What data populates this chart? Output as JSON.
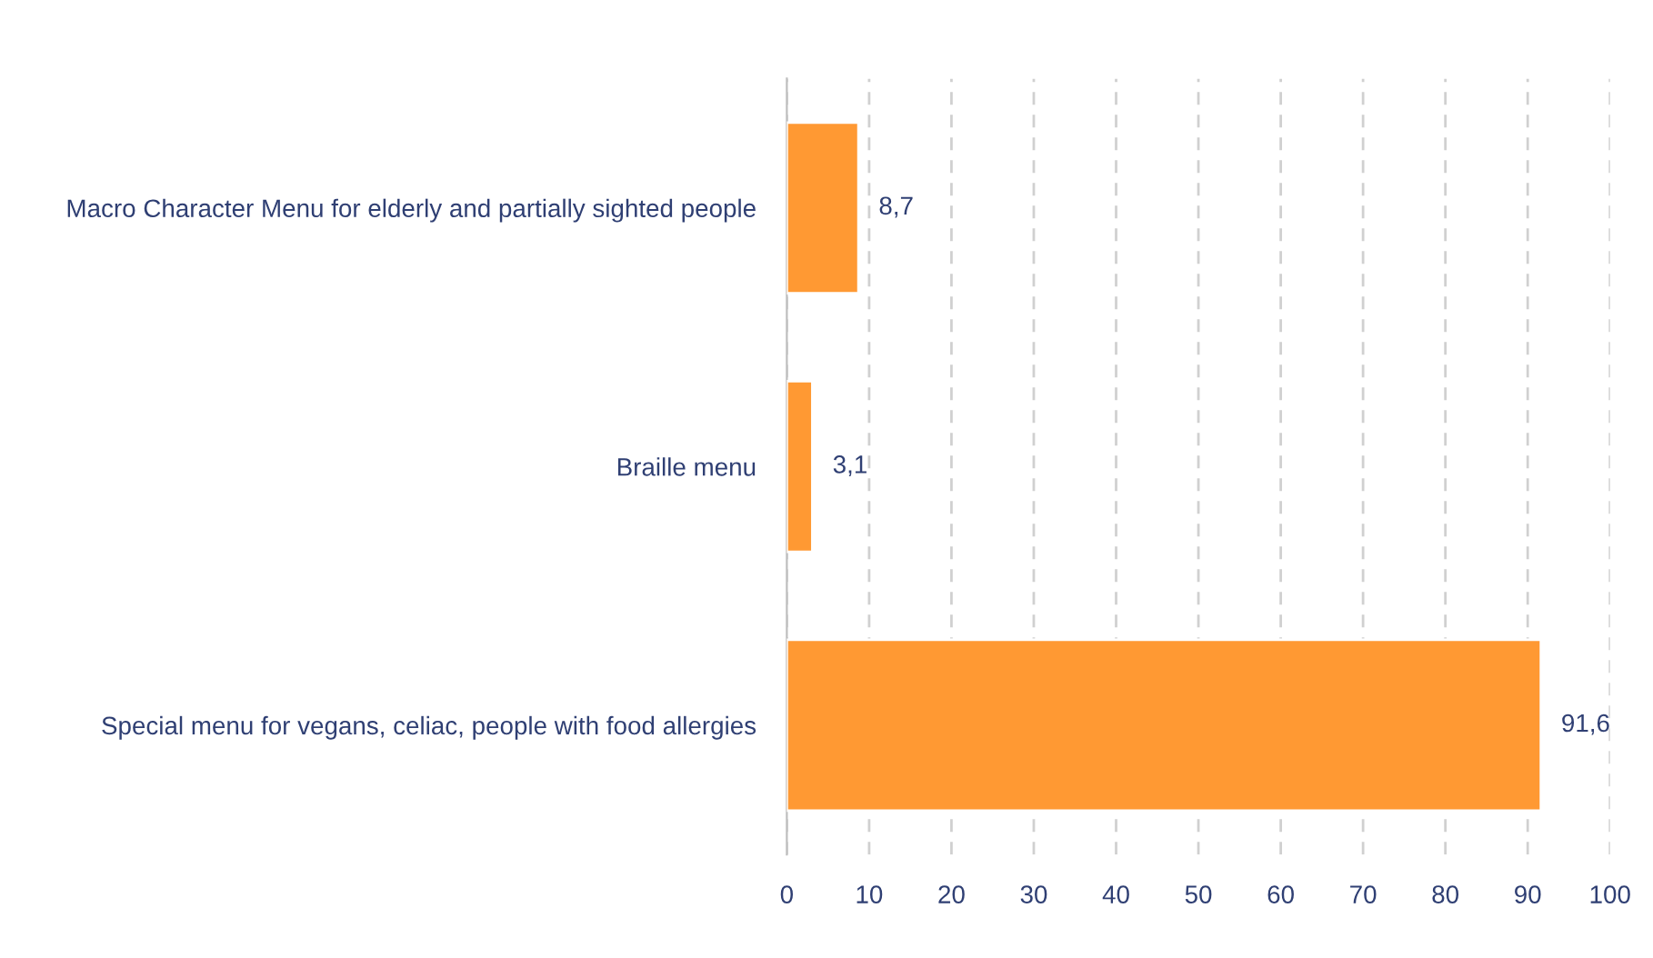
{
  "chart_data": {
    "type": "bar",
    "orientation": "horizontal",
    "categories": [
      "Macro Character Menu for elderly and partially sighted people",
      "Braille menu",
      "Special menu for vegans, celiac, people with food allergies"
    ],
    "values": [
      8.7,
      3.1,
      91.6
    ],
    "value_labels": [
      "8,7",
      "3,1",
      "91,6"
    ],
    "color": "#ff9933",
    "xlim": [
      0,
      100
    ],
    "xticks": [
      0,
      10,
      20,
      30,
      40,
      50,
      60,
      70,
      80,
      90,
      100
    ],
    "grid": "x",
    "line_style": "dashed",
    "legend": false
  }
}
